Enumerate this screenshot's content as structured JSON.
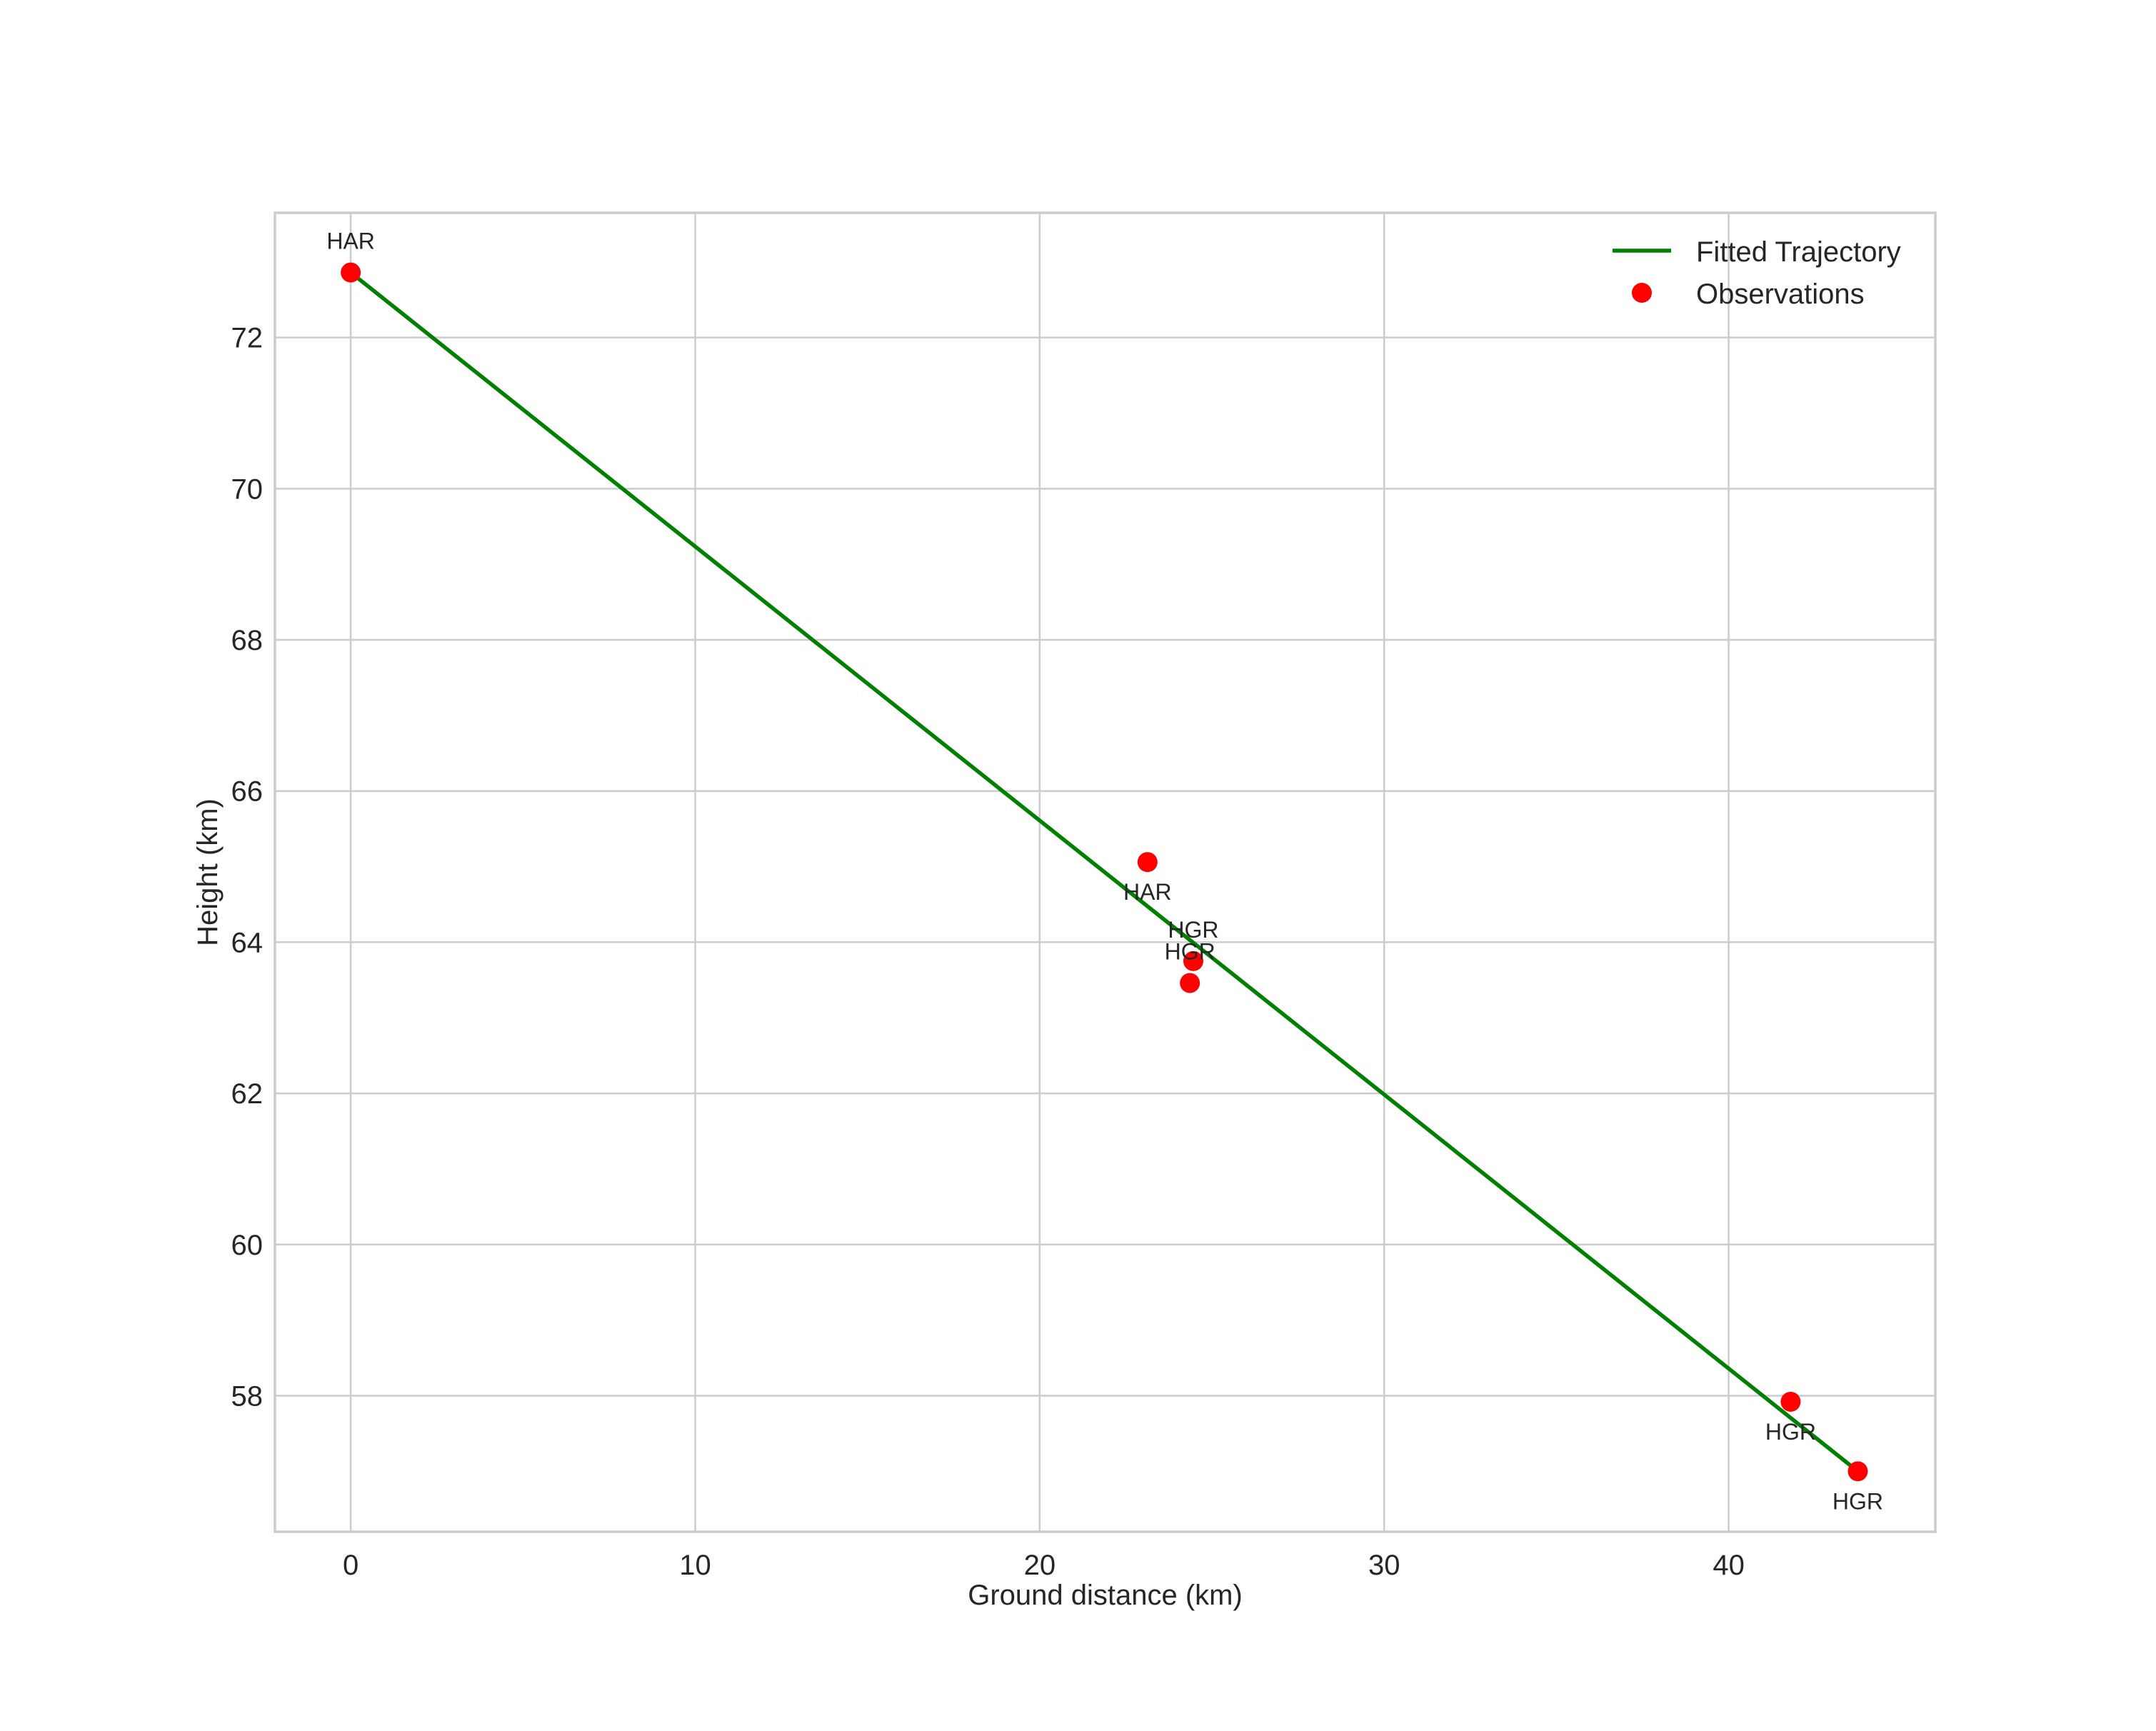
{
  "figure": {
    "background": "#ffffff",
    "text_color": "#262626",
    "grid_color": "#cccccc",
    "line_color": "#008000",
    "marker_color": "#ff0000"
  },
  "chart_data": {
    "type": "scatter",
    "title": "",
    "xlabel": "Ground distance (km)",
    "ylabel": "Height (km)",
    "xlim": [
      -2.2,
      46.0
    ],
    "ylim": [
      56.2,
      73.65
    ],
    "xticks": [
      0,
      10,
      20,
      30,
      40
    ],
    "yticks": [
      58,
      60,
      62,
      64,
      66,
      68,
      70,
      72
    ],
    "grid": true,
    "legend_position": "upper right",
    "legend": [
      {
        "label": "Fitted Trajectory",
        "kind": "line",
        "color": "#008000"
      },
      {
        "label": "Observations",
        "kind": "marker",
        "color": "#ff0000"
      }
    ],
    "series": [
      {
        "name": "Fitted Trajectory",
        "type": "line",
        "color": "#008000",
        "x": [
          0.0,
          43.75
        ],
        "y": [
          72.86,
          57.0
        ]
      },
      {
        "name": "Observations",
        "type": "scatter",
        "color": "#ff0000",
        "points": [
          {
            "x": 0.0,
            "y": 72.86,
            "label": "HAR",
            "label_pos": "above"
          },
          {
            "x": 23.13,
            "y": 65.06,
            "label": "HAR",
            "label_pos": "below"
          },
          {
            "x": 24.46,
            "y": 63.75,
            "label": "HGR",
            "label_pos": "above"
          },
          {
            "x": 24.36,
            "y": 63.46,
            "label": "HGR",
            "label_pos": "above"
          },
          {
            "x": 41.8,
            "y": 57.92,
            "label": "HGR",
            "label_pos": "below"
          },
          {
            "x": 43.75,
            "y": 57.0,
            "label": "HGR",
            "label_pos": "below"
          }
        ]
      }
    ]
  }
}
